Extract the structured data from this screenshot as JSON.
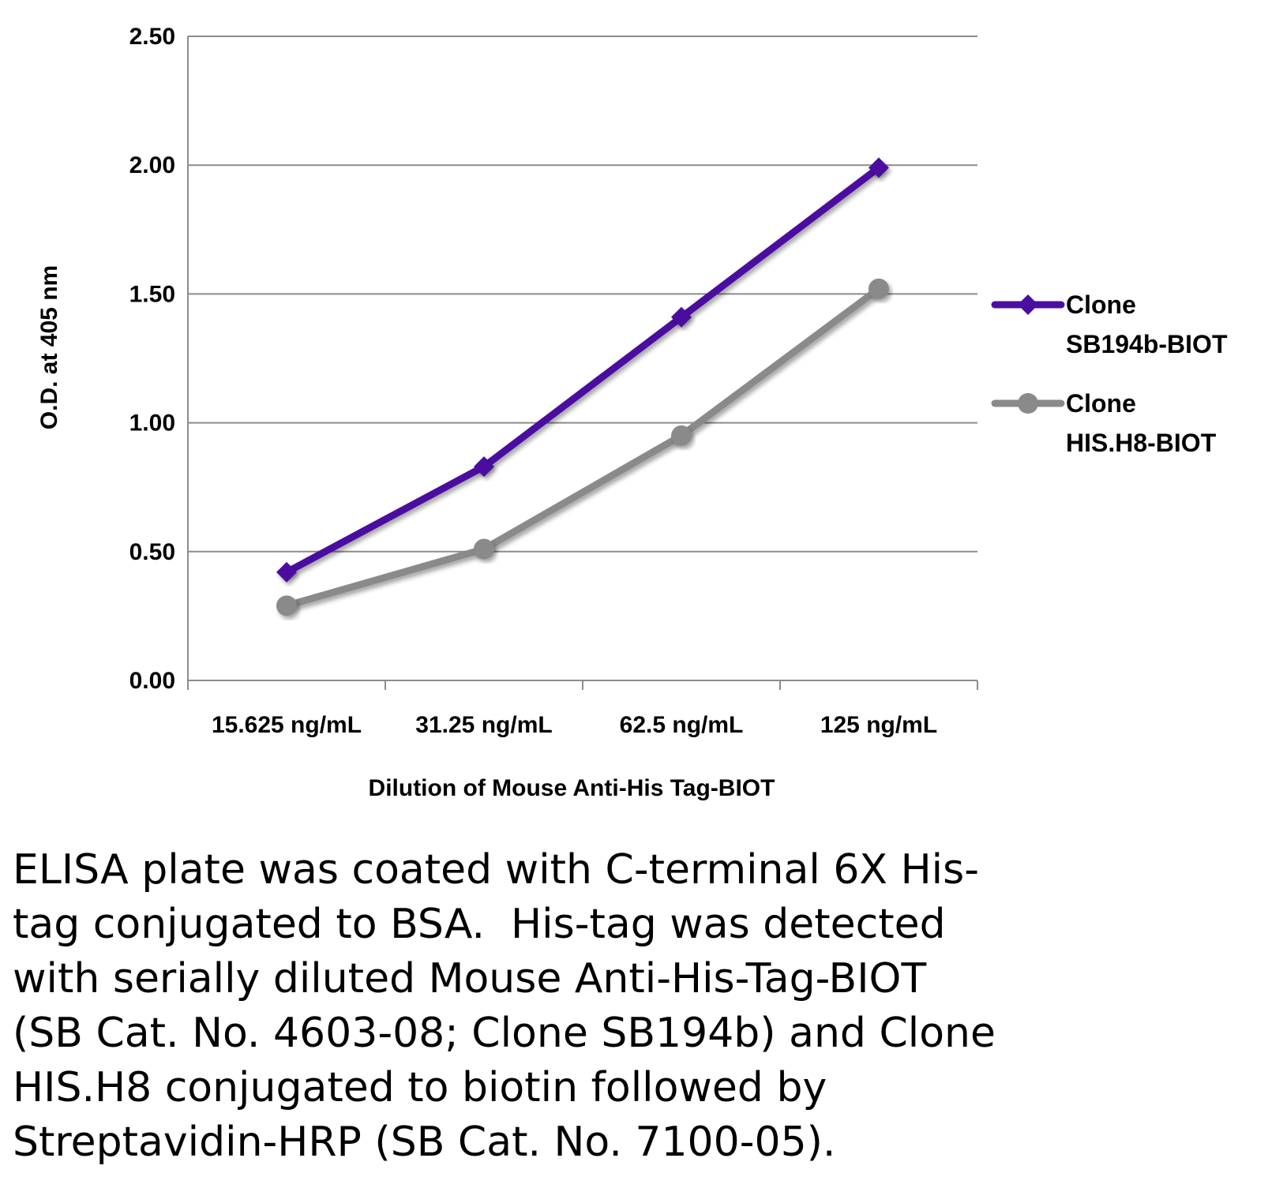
{
  "colors": {
    "series_1": "#4b0fa0",
    "series_2": "#8a8a8a",
    "grid": "#8c8c8c",
    "axis": "#8c8c8c"
  },
  "chart_data": {
    "type": "line",
    "categories": [
      "15.625 ng/mL",
      "31.25 ng/mL",
      "62.5 ng/mL",
      "125 ng/mL"
    ],
    "xlabel": "Dilution of Mouse Anti-His Tag-BIOT",
    "ylabel": "O.D. at 405 nm",
    "ylim": [
      0,
      2.5
    ],
    "yticks": [
      "0.00",
      "0.50",
      "1.00",
      "1.50",
      "2.00",
      "2.50"
    ],
    "grid": true,
    "legend_position": "right",
    "series": [
      {
        "name_lines": [
          "Clone",
          "SB194b-BIOT"
        ],
        "marker": "diamond",
        "color": "#4b0fa0",
        "values": [
          0.42,
          0.83,
          1.41,
          1.99
        ]
      },
      {
        "name_lines": [
          "Clone",
          "HIS.H8-BIOT"
        ],
        "marker": "circle",
        "color": "#8a8a8a",
        "values": [
          0.29,
          0.51,
          0.95,
          1.52
        ]
      }
    ]
  },
  "caption": {
    "lines": [
      "ELISA plate was coated with C-terminal 6X His-",
      "tag conjugated to BSA.  His-tag was detected",
      "with serially diluted Mouse Anti-His-Tag-BIOT",
      "(SB Cat. No. 4603-08; Clone SB194b) and Clone",
      "HIS.H8 conjugated to biotin followed by",
      "Streptavidin-HRP (SB Cat. No. 7100-05)."
    ]
  }
}
